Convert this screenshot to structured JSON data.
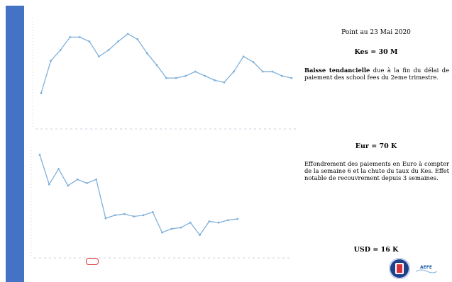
{
  "header": {
    "title": "Point au 23 Mai 2020"
  },
  "kes": {
    "title": "Kes = 30 M",
    "note_bold": "Baisse tendancielle",
    "note_rest": " due à la fin du délai de paiement des school fees du 2eme trimestre."
  },
  "eur": {
    "title": "Eur = 70 K",
    "note": "Effondrement des paiements en Euro à compter de la semaine 6 et la chute du taux du Kes. Effet notable de recouvrement depuis 3 semaines."
  },
  "usd": {
    "title": "USD = 16 K"
  },
  "colors": {
    "sidebar": "#4472c4",
    "line": "#7fb0da",
    "highlight": "#e03a3a"
  },
  "logo": {
    "brand_text": "AEFE"
  },
  "chart_data": [
    {
      "type": "line",
      "x": [
        1,
        2,
        3,
        4,
        5,
        6,
        7,
        8,
        9,
        10,
        11,
        12,
        13,
        14,
        15,
        16,
        17,
        18,
        19,
        20,
        21,
        22,
        23,
        24,
        25,
        26,
        27
      ],
      "values": [
        28,
        58,
        68,
        80,
        80,
        76,
        62,
        68,
        76,
        83,
        78,
        65,
        54,
        42,
        42,
        44,
        48,
        44,
        40,
        38,
        48,
        62,
        57,
        48,
        48,
        44,
        42
      ],
      "ylim": [
        0,
        100
      ],
      "grid": false
    },
    {
      "type": "line",
      "x": [
        1,
        2,
        3,
        4,
        5,
        6,
        7,
        8,
        9,
        10,
        11,
        12,
        13,
        14,
        15,
        16,
        17,
        18,
        19,
        20,
        21,
        22,
        23,
        24,
        25,
        26,
        27
      ],
      "values": [
        158,
        110,
        135,
        108,
        118,
        112,
        118,
        55,
        60,
        62,
        58,
        60,
        65,
        32,
        38,
        40,
        48,
        28,
        50,
        48,
        52,
        54,
        null,
        null,
        null,
        null,
        null
      ],
      "ylim": [
        0,
        170
      ],
      "grid": false
    }
  ]
}
